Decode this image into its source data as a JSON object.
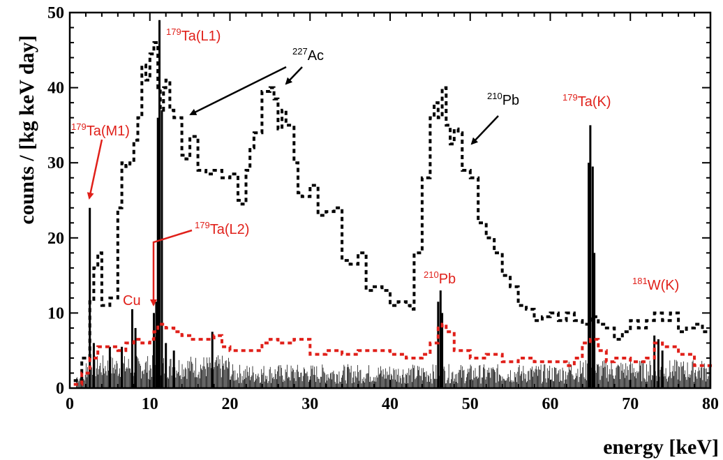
{
  "chart_data": {
    "type": "bar",
    "xlabel": "energy [keV]",
    "ylabel": "counts / [kg keV day]",
    "xlim": [
      0,
      80
    ],
    "ylim": [
      0,
      50
    ],
    "x_ticks": [
      0,
      10,
      20,
      30,
      40,
      50,
      60,
      70,
      80
    ],
    "y_ticks": [
      0,
      10,
      20,
      30,
      40,
      50
    ],
    "x_tick_labels": [
      "0",
      "10",
      "20",
      "30",
      "40",
      "50",
      "60",
      "70",
      "80"
    ],
    "y_tick_labels": [
      "0",
      "10",
      "20",
      "30",
      "40",
      "50"
    ],
    "grid": false,
    "colors": {
      "histogram": "#000000",
      "dotted_black": "#000000",
      "dotted_red": "#e0201a",
      "annotation_red": "#e0201a",
      "annotation_black": "#000000"
    },
    "series": [
      {
        "style": "black dotted",
        "x": [
          0.5,
          1.5,
          2.5,
          3.0,
          3.5,
          4.0,
          5.0,
          6.0,
          6.5,
          7.0,
          7.5,
          8.0,
          8.5,
          9.0,
          9.5,
          10.0,
          10.5,
          11.0,
          11.3,
          11.7,
          12.0,
          12.5,
          13.0,
          14.0,
          14.5,
          15.0,
          16.0,
          17.0,
          18.0,
          19.0,
          20.0,
          21.0,
          21.5,
          22.0,
          22.5,
          23.0,
          24.0,
          25.0,
          25.5,
          26.0,
          26.5,
          27.0,
          28.0,
          28.5,
          29.0,
          30.0,
          31.0,
          32.0,
          33.0,
          34.0,
          35.0,
          36.0,
          37.0,
          38.0,
          39.0,
          40.0,
          41.0,
          42.0,
          42.5,
          43.0,
          44.0,
          45.0,
          45.5,
          46.0,
          46.5,
          47.0,
          47.5,
          48.0,
          48.5,
          49.0,
          50.0,
          51.0,
          52.0,
          53.0,
          54.0,
          55.0,
          56.0,
          57.0,
          58.0,
          59.0,
          60.0,
          61.0,
          62.0,
          63.0,
          64.0,
          65.0,
          66.0,
          67.0,
          68.0,
          69.0,
          70.0,
          71.0,
          72.0,
          73.0,
          74.0,
          75.0,
          76.0,
          77.0,
          78.0,
          79.0,
          80.0
        ],
        "y": [
          1.0,
          4.0,
          11.5,
          16.0,
          18.0,
          11.0,
          12.0,
          24.0,
          30.0,
          29.5,
          30.0,
          33.0,
          36.0,
          43.0,
          41.0,
          44.5,
          46.0,
          40.0,
          37.0,
          40.0,
          41.0,
          37.0,
          36.0,
          31.0,
          30.5,
          33.5,
          29.0,
          28.5,
          29.0,
          28.0,
          28.5,
          25.0,
          24.5,
          29.0,
          32.0,
          34.0,
          39.5,
          40.0,
          38.5,
          34.5,
          37.0,
          35.0,
          30.0,
          26.0,
          25.5,
          27.0,
          23.0,
          23.5,
          24.0,
          17.0,
          16.5,
          18.0,
          13.0,
          13.5,
          13.0,
          11.0,
          11.5,
          11.0,
          10.5,
          18.0,
          28.0,
          36.0,
          38.0,
          36.0,
          40.0,
          35.0,
          32.5,
          34.5,
          34.0,
          29.0,
          28.0,
          22.0,
          20.0,
          18.0,
          15.0,
          13.5,
          11.0,
          10.5,
          9.0,
          9.5,
          10.0,
          9.0,
          10.0,
          9.0,
          8.5,
          9.5,
          8.5,
          8.0,
          6.5,
          7.5,
          9.0,
          8.0,
          9.0,
          10.0,
          9.0,
          10.0,
          7.5,
          8.0,
          8.5,
          7.5,
          7.5
        ]
      },
      {
        "style": "red dotted",
        "x": [
          0.5,
          1.5,
          2.5,
          3.5,
          5.0,
          6.0,
          7.0,
          8.0,
          9.0,
          10.0,
          10.5,
          11.0,
          12.0,
          13.0,
          14.0,
          15.0,
          16.0,
          17.0,
          18.0,
          19.0,
          20.0,
          22.0,
          24.0,
          25.0,
          26.0,
          28.0,
          30.0,
          32.0,
          34.0,
          36.0,
          38.0,
          40.0,
          42.0,
          44.0,
          45.0,
          46.0,
          46.5,
          47.0,
          48.0,
          50.0,
          52.0,
          54.0,
          56.0,
          58.0,
          60.0,
          62.0,
          63.0,
          64.0,
          65.0,
          66.0,
          67.0,
          68.0,
          70.0,
          72.0,
          73.0,
          74.0,
          76.0,
          78.0,
          80.0
        ],
        "y": [
          0.5,
          2.0,
          4.0,
          5.5,
          5.5,
          5.0,
          6.0,
          6.5,
          6.0,
          6.5,
          7.5,
          8.5,
          8.0,
          7.5,
          7.0,
          6.5,
          6.5,
          6.5,
          7.0,
          5.5,
          5.0,
          5.0,
          6.0,
          6.5,
          6.0,
          6.5,
          4.5,
          5.0,
          4.5,
          5.0,
          5.0,
          4.5,
          4.0,
          4.5,
          6.0,
          8.0,
          8.5,
          7.5,
          5.0,
          4.0,
          4.5,
          3.5,
          4.0,
          3.5,
          3.5,
          3.0,
          4.0,
          6.0,
          6.5,
          5.0,
          3.5,
          4.0,
          3.5,
          4.0,
          6.0,
          5.5,
          4.5,
          3.0,
          3.5
        ]
      }
    ],
    "peaks": [
      {
        "x": 2.5,
        "y": 24.0
      },
      {
        "x": 3.0,
        "y": 6.0
      },
      {
        "x": 5.0,
        "y": 5.5
      },
      {
        "x": 6.5,
        "y": 5.5
      },
      {
        "x": 7.8,
        "y": 10.5
      },
      {
        "x": 8.2,
        "y": 8.0
      },
      {
        "x": 10.5,
        "y": 10.0
      },
      {
        "x": 10.8,
        "y": 11.5
      },
      {
        "x": 11.0,
        "y": 36.0
      },
      {
        "x": 11.2,
        "y": 49.0
      },
      {
        "x": 11.5,
        "y": 37.0
      },
      {
        "x": 12.0,
        "y": 6.0
      },
      {
        "x": 13.0,
        "y": 5.0
      },
      {
        "x": 17.8,
        "y": 7.5
      },
      {
        "x": 46.0,
        "y": 11.5
      },
      {
        "x": 46.3,
        "y": 13.0
      },
      {
        "x": 46.5,
        "y": 10.0
      },
      {
        "x": 64.8,
        "y": 30.0
      },
      {
        "x": 65.0,
        "y": 35.0
      },
      {
        "x": 65.3,
        "y": 29.5
      },
      {
        "x": 65.5,
        "y": 18.0
      },
      {
        "x": 73.0,
        "y": 7.0
      },
      {
        "x": 73.5,
        "y": 6.5
      },
      {
        "x": 74.0,
        "y": 5.0
      }
    ],
    "annotations": [
      {
        "id": "ta-l1",
        "sup": "179",
        "text": "Ta(L1)",
        "color": "red"
      },
      {
        "id": "ac227",
        "sup": "227",
        "text": "Ac",
        "color": "black"
      },
      {
        "id": "ta-m1",
        "sup": "179",
        "text": "Ta(M1)",
        "color": "red"
      },
      {
        "id": "pb210-black",
        "sup": "210",
        "text": "Pb",
        "color": "black"
      },
      {
        "id": "ta-k",
        "sup": "179",
        "text": "Ta(K)",
        "color": "red"
      },
      {
        "id": "ta-l2",
        "sup": "179",
        "text": "Ta(L2)",
        "color": "red"
      },
      {
        "id": "cu",
        "sup": "",
        "text": "Cu",
        "color": "red"
      },
      {
        "id": "pb210-red",
        "sup": "210",
        "text": "Pb",
        "color": "red"
      },
      {
        "id": "w181-k",
        "sup": "181",
        "text": "W(K)",
        "color": "red"
      }
    ]
  }
}
